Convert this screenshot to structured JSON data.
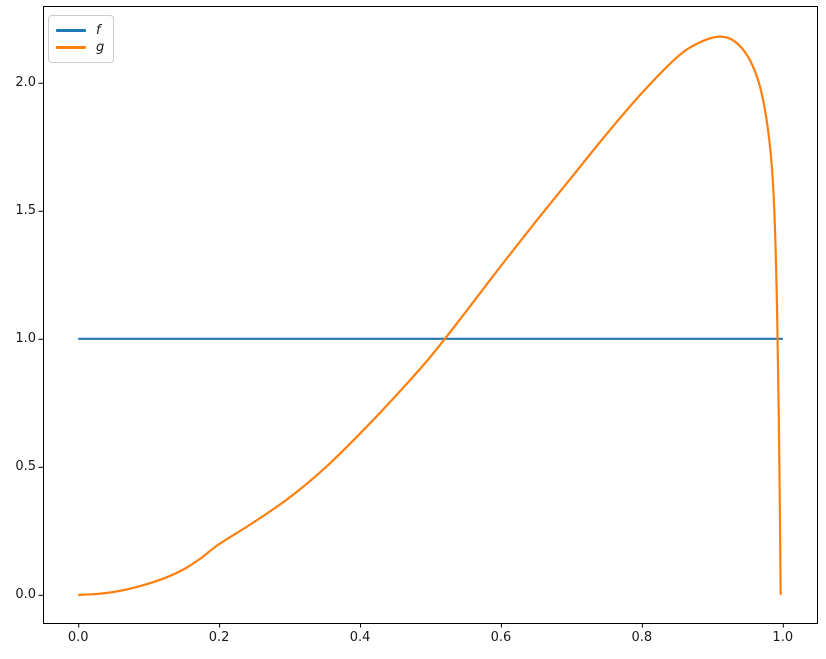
{
  "figure": {
    "background": "#ffffff"
  },
  "legend": {
    "items": [
      {
        "label": "f",
        "color": "#1f77b4"
      },
      {
        "label": "g",
        "color": "#ff7f0e"
      }
    ]
  },
  "chart_data": {
    "type": "line",
    "title": "",
    "xlabel": "",
    "ylabel": "",
    "grid": false,
    "legend_position": "upper-left",
    "xlim": [
      -0.05,
      1.05
    ],
    "ylim": [
      -0.11,
      2.3
    ],
    "xticks": [
      0.0,
      0.2,
      0.4,
      0.6,
      0.8,
      1.0
    ],
    "xticklabels": [
      "0.0",
      "0.2",
      "0.4",
      "0.6",
      "0.8",
      "1.0"
    ],
    "yticks": [
      0.0,
      0.5,
      1.0,
      1.5,
      2.0
    ],
    "yticklabels": [
      "0.0",
      "0.5",
      "1.0",
      "1.5",
      "2.0"
    ],
    "axis_color": "#000000",
    "series": [
      {
        "name": "f",
        "color": "#1f77b4",
        "x": [
          0.0,
          1.0
        ],
        "y": [
          1.0,
          1.0
        ]
      },
      {
        "name": "g",
        "color": "#ff7f0e",
        "x": [
          0.0,
          0.025,
          0.05,
          0.075,
          0.1,
          0.125,
          0.15,
          0.175,
          0.2,
          0.25,
          0.3,
          0.35,
          0.4,
          0.45,
          0.5,
          0.55,
          0.6,
          0.65,
          0.7,
          0.75,
          0.8,
          0.85,
          0.88,
          0.908,
          0.93,
          0.95,
          0.965,
          0.975,
          0.983,
          0.988,
          0.992,
          0.995,
          0.997
        ],
        "y": [
          0.0,
          0.003,
          0.011,
          0.025,
          0.044,
          0.068,
          0.1,
          0.145,
          0.198,
          0.285,
          0.38,
          0.495,
          0.63,
          0.775,
          0.93,
          1.105,
          1.285,
          1.46,
          1.63,
          1.8,
          1.96,
          2.1,
          2.155,
          2.18,
          2.165,
          2.105,
          2.01,
          1.89,
          1.72,
          1.5,
          1.1,
          0.55,
          0.0
        ]
      }
    ]
  }
}
